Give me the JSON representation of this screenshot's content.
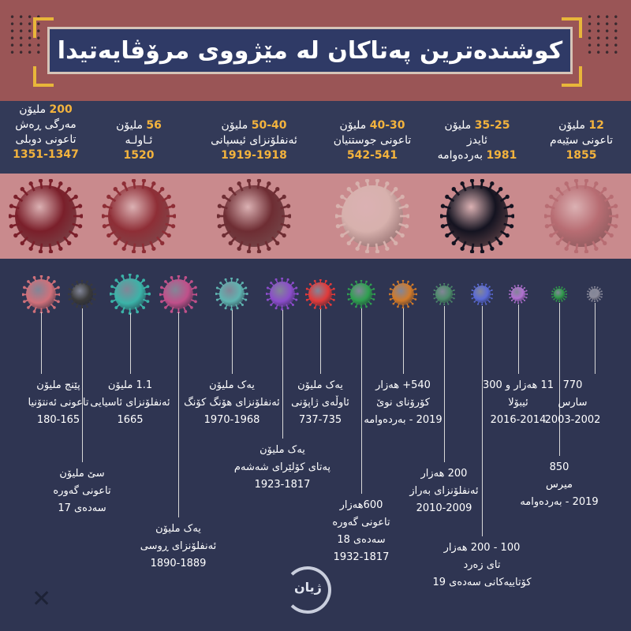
{
  "title": "کوشندەترین پەتاکان لە مێژووی مرۆڤایەتیدا",
  "top_pandemics": [
    {
      "deaths": "200",
      "deaths_unit": "ملیۆن",
      "name1": "مەرگی ڕەش",
      "name2": "تاعونی دوبلی",
      "years": "1351-1347",
      "color": "#7a1f2a"
    },
    {
      "deaths": "56",
      "deaths_unit": "ملیۆن",
      "name1": "ئـاولـە",
      "name2": "",
      "years": "1520",
      "color": "#8e2e36"
    },
    {
      "deaths": "50-40",
      "deaths_unit": "ملیۆن",
      "name1": "ئەنفلۆنزای ئیسپانی",
      "name2": "",
      "years": "1919-1918",
      "color": "#6e2d33"
    },
    {
      "deaths": "40-30",
      "deaths_unit": "ملیۆن",
      "name1": "تاعونی جوستنیان",
      "name2": "",
      "years": "542-541",
      "color": "#d7b1ad"
    },
    {
      "deaths": "35-25",
      "deaths_unit": "ملیۆن",
      "name1": "ئایدز",
      "name2": "",
      "years": "1981",
      "years_suffix": "بەردەوامە",
      "color": "#141320"
    },
    {
      "deaths": "12",
      "deaths_unit": "ملیۆن",
      "name1": "تاعونی سێیەم",
      "name2": "",
      "years": "1855",
      "color": "#b86d73"
    }
  ],
  "bottom_pandemics": [
    {
      "l1": "پێنج ملیۆن",
      "l2": "تاعونی ئەنتۆنیا",
      "l3": "180-165",
      "color": "#d0707a"
    },
    {
      "l1": "سێ ملیۆن",
      "l2": "تاعونی گەورە",
      "l3": "سەدەی 17",
      "color": "#3a3a3a"
    },
    {
      "l1": "1.1 ملیۆن",
      "l2": "ئەنفلۆنزای ئاسیایی",
      "l3": "1665",
      "color": "#3bb3a8"
    },
    {
      "l1": "یەک ملیۆن",
      "l2": "ئەنفلۆنزای ڕوسی",
      "l3": "1890-1889",
      "color": "#c0508a"
    },
    {
      "l1": "یەک ملیۆن",
      "l2": "ئەنفلۆنزای هۆنگ کۆنگ",
      "l3": "1970-1968",
      "color": "#5fb3b0"
    },
    {
      "l1": "یەک ملیۆن",
      "l2": "پەتای کۆلێرای شەشەم",
      "l3": "1923-1817",
      "color": "#8a4cc9"
    },
    {
      "l1": "یەک ملیۆن",
      "l2": "ئاوڵەی ژاپۆنی",
      "l3": "737-735",
      "color": "#e13a3a"
    },
    {
      "l1": "600هەزار",
      "l2": "تاعونی گەورە",
      "l3": "سەدەی 18",
      "l4": "1932-1817",
      "color": "#2fa050"
    },
    {
      "l1": "540+ هەزار",
      "l2": "کۆرۆنای نوێ",
      "l3": "2019 - بەردەوامە",
      "color": "#d07a2a"
    },
    {
      "l1": "200 هەزار",
      "l2": "ئەنفلۆنزای بەراز",
      "l3": "2010-2009",
      "color": "#4c8a6a"
    },
    {
      "l1": "100 - 200 هەزار",
      "l2": "تای زەرد",
      "l3": "کۆتاییەکانی سەدەی 19",
      "color": "#5a6ad6"
    },
    {
      "l1": "11 هەزار و 300",
      "l2": "ئیبۆلا",
      "l3": "2016-2014",
      "color": "#b070d0"
    },
    {
      "l1": "850",
      "l2": "میرس",
      "l3": "2019 - بەردەوامە",
      "color": "#2f9a4a"
    },
    {
      "l1": "770",
      "l2": "سارس",
      "l3": "2003-2002",
      "color": "#8a8a9a"
    }
  ],
  "logo_text": "ژیان",
  "icons": [
    "close-icon",
    "virus-icon",
    "logo-icon"
  ]
}
